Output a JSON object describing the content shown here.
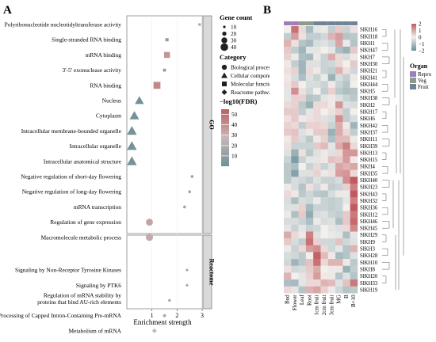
{
  "panel_labels": [
    "A",
    "B"
  ],
  "chart_data": [
    {
      "type": "scatter",
      "panel": "A",
      "xlabel": "Enrichment strength",
      "xlim": [
        0,
        3
      ],
      "xticks": [
        1,
        2,
        3
      ],
      "facets": [
        {
          "name": "GO",
          "terms": [
            {
              "term": "Polyribonucleotide nucleotidyltransferase activity",
              "x": 2.9,
              "category": "Molecular function",
              "size": 10,
              "fdr": 18
            },
            {
              "term": "Single-stranded RNA binding",
              "x": 1.6,
              "category": "Molecular function",
              "size": 14,
              "fdr": 10
            },
            {
              "term": "mRNA binding",
              "x": 1.6,
              "category": "Molecular function",
              "size": 30,
              "fdr": 38
            },
            {
              "term": "3'-5' exonuclease activity",
              "x": 1.5,
              "category": "Molecular function",
              "size": 12,
              "fdr": 8
            },
            {
              "term": "RNA binding",
              "x": 1.2,
              "category": "Molecular function",
              "size": 36,
              "fdr": 42
            },
            {
              "term": "Nucleus",
              "x": 0.5,
              "category": "Cellular component",
              "size": 36,
              "fdr": 2
            },
            {
              "term": "Cytoplasm",
              "x": 0.3,
              "category": "Cellular component",
              "size": 38,
              "fdr": 2
            },
            {
              "term": "Intracellular membrane-bounded organelle",
              "x": 0.2,
              "category": "Cellular component",
              "size": 40,
              "fdr": 2
            },
            {
              "term": "Intracellular organelle",
              "x": 0.2,
              "category": "Cellular component",
              "size": 40,
              "fdr": 2
            },
            {
              "term": "Intracellular anatomical structure",
              "x": 0.2,
              "category": "Cellular component",
              "size": 40,
              "fdr": 2
            },
            {
              "term": "Negative regulation of short-day flowering",
              "x": 2.6,
              "category": "Biological process",
              "size": 12,
              "fdr": 15
            },
            {
              "term": "Negative regulation of long-day flowering",
              "x": 2.5,
              "category": "Biological process",
              "size": 12,
              "fdr": 15
            },
            {
              "term": "mRNA transcription",
              "x": 2.3,
              "category": "Biological process",
              "size": 12,
              "fdr": 14
            },
            {
              "term": "Regulation of gene expression",
              "x": 0.9,
              "category": "Biological process",
              "size": 36,
              "fdr": 34
            },
            {
              "term": "Macromolecule metabolic process",
              "x": 0.9,
              "category": "Biological process",
              "size": 38,
              "fdr": 32
            }
          ]
        },
        {
          "name": "Reactome",
          "terms": [
            {
              "term": "Signaling by Non-Receptor Tyrosine Kinases",
              "x": 2.4,
              "category": "Reactome pathways",
              "size": 10,
              "fdr": 14
            },
            {
              "term": "Signaling by PTK6",
              "x": 2.4,
              "category": "Reactome pathways",
              "size": 10,
              "fdr": 14
            },
            {
              "term": "Regulation of mRNA stability by proteins that bind AU-rich elements",
              "x": 1.7,
              "category": "Reactome pathways",
              "size": 12,
              "fdr": 16
            },
            {
              "term": "Processing of Capped Intron-Containing Pre-mRNA",
              "x": 1.5,
              "category": "Reactome pathways",
              "size": 14,
              "fdr": 18
            },
            {
              "term": "Metabolism of mRNA",
              "x": 1.1,
              "category": "Reactome pathways",
              "size": 18,
              "fdr": 28
            }
          ]
        }
      ],
      "legend": {
        "size_title": "Gene count",
        "size_values": [
          10,
          20,
          30,
          40
        ],
        "category_title": "Category",
        "categories": [
          {
            "name": "Biological process",
            "shape": "circle"
          },
          {
            "name": "Cellular component",
            "shape": "triangle"
          },
          {
            "name": "Molecular function",
            "shape": "square"
          },
          {
            "name": "Reactome pathways",
            "shape": "diamond"
          }
        ],
        "color_title": "−log10(FDR)",
        "color_ticks": [
          10,
          20,
          30,
          40,
          50
        ],
        "color_range": [
          0,
          55
        ],
        "colors": [
          "#6f8f97",
          "#c8b8b8",
          "#b86060"
        ]
      }
    },
    {
      "type": "heatmap",
      "panel": "B",
      "columns": [
        "Bud",
        "Flower",
        "Leaf",
        "Root",
        "1cm fruit",
        "2cm fruit",
        "3cm fruit",
        "MG",
        "B",
        "B+10"
      ],
      "column_organ": [
        "Repro",
        "Repro",
        "Veg",
        "Veg",
        "Fruit",
        "Fruit",
        "Fruit",
        "Fruit",
        "Fruit",
        "Fruit"
      ],
      "rows": [
        "SlKH16",
        "SlKH18",
        "SlKH1",
        "SlKH47",
        "SlKH7",
        "SlKH30",
        "SlKH21",
        "SlKH41",
        "SlKH44",
        "SlKH5",
        "SlKH38",
        "SlKH2",
        "SlKH17",
        "SlKH6",
        "SlKH42",
        "SlKH37",
        "SlKH11",
        "SlKH39",
        "SlKH13",
        "SlKH15",
        "SlKH4",
        "SlKH35",
        "SlKH40",
        "SlKH23",
        "SlKH43",
        "SlKH32",
        "SlKH36",
        "SlKH12",
        "SlKH46",
        "SlKH45",
        "SlKH29",
        "SlKH9",
        "SlKH3",
        "SlKH28",
        "SlKH10",
        "SlKH8",
        "SlKH20",
        "SlKH33",
        "SlKH19"
      ],
      "values": [
        [
          0.0,
          1.7,
          0.3,
          -1.1,
          -0.2,
          -0.1,
          -0.7,
          0.5,
          -0.6,
          0.2
        ],
        [
          -0.7,
          1.1,
          0.2,
          -0.7,
          -0.7,
          -0.5,
          0.8,
          1.1,
          -0.9,
          -0.8
        ],
        [
          0.8,
          0.2,
          -0.9,
          -1.1,
          -0.4,
          -0.3,
          -0.5,
          1.0,
          -0.1,
          -0.9
        ],
        [
          0.5,
          -0.7,
          -1.2,
          -0.2,
          -0.2,
          0.0,
          -0.2,
          -1.0,
          -1.3,
          0.5
        ],
        [
          0.4,
          -0.1,
          -1.0,
          -1.1,
          0.1,
          -0.6,
          0.9,
          0.3,
          -0.4,
          -0.1
        ],
        [
          0.1,
          -0.7,
          -1.2,
          -0.3,
          -0.3,
          -0.6,
          -0.5,
          0.3,
          0.0,
          0.5
        ],
        [
          0.2,
          0.4,
          -1.2,
          0.3,
          0.1,
          -0.6,
          -0.7,
          0.8,
          0.2,
          -0.5
        ],
        [
          0.1,
          -0.4,
          -1.0,
          -0.3,
          -0.6,
          -0.1,
          -1.3,
          -0.4,
          -0.7,
          -0.1
        ],
        [
          0.2,
          0.5,
          0.0,
          -0.4,
          -0.4,
          -0.6,
          0.1,
          -0.6,
          -0.9,
          0.0
        ],
        [
          -0.2,
          1.3,
          0.2,
          -0.5,
          0.0,
          -0.7,
          0.4,
          -0.8,
          -1.0,
          -0.9
        ],
        [
          -0.2,
          0.4,
          0.4,
          -0.9,
          -0.8,
          -0.2,
          0.1,
          -0.3,
          -0.6,
          -0.8
        ],
        [
          0.3,
          0.4,
          -0.8,
          -1.3,
          0.3,
          0.3,
          0.1,
          1.2,
          -0.3,
          -0.4
        ],
        [
          0.5,
          0.5,
          -0.7,
          -0.2,
          0.3,
          0.0,
          0.2,
          0.4,
          -0.7,
          0.0
        ],
        [
          0.2,
          0.5,
          0.1,
          0.2,
          0.3,
          -0.3,
          -0.4,
          1.3,
          -0.7,
          -0.4
        ],
        [
          0.4,
          0.3,
          -0.7,
          0.4,
          0.4,
          0.3,
          -0.6,
          0.9,
          0.1,
          -1.2
        ],
        [
          0.5,
          0.6,
          -0.3,
          -0.1,
          0.5,
          0.5,
          -1.3,
          0.9,
          0.3,
          -0.7
        ],
        [
          0.1,
          0.5,
          -0.4,
          -0.8,
          -0.1,
          0.4,
          -1.0,
          0.7,
          0.7,
          -0.1
        ],
        [
          0.2,
          -0.6,
          -0.6,
          -0.6,
          0.5,
          0.7,
          -0.2,
          0.9,
          1.5,
          0.3
        ],
        [
          -0.3,
          -1.3,
          0.2,
          -0.8,
          -0.3,
          0.1,
          -0.3,
          0.3,
          1.2,
          1.2
        ],
        [
          -0.6,
          -1.7,
          -0.6,
          -0.2,
          -0.2,
          0.1,
          0.6,
          0.5,
          1.1,
          0.1
        ],
        [
          -0.8,
          -1.0,
          0.0,
          -0.6,
          0.3,
          -0.6,
          -0.3,
          1.0,
          0.8,
          1.0
        ],
        [
          -0.8,
          -1.6,
          -0.3,
          -0.3,
          0.4,
          -0.1,
          0.2,
          1.1,
          1.2,
          0.3
        ],
        [
          -0.8,
          -0.4,
          -0.5,
          -0.7,
          -0.3,
          -0.6,
          -0.6,
          -0.4,
          1.3,
          2.1
        ],
        [
          -0.1,
          -0.4,
          -0.9,
          0.2,
          -0.5,
          0.1,
          -0.7,
          -0.6,
          0.4,
          1.5
        ],
        [
          0.3,
          0.1,
          -0.8,
          -0.5,
          -0.8,
          -0.9,
          -0.4,
          -0.1,
          -0.1,
          2.0
        ],
        [
          -0.4,
          -1.0,
          -0.4,
          -0.5,
          -0.1,
          -0.6,
          -0.7,
          -0.6,
          -0.2,
          1.5
        ],
        [
          -0.3,
          -0.3,
          0.4,
          -1.1,
          -0.6,
          -0.6,
          -0.7,
          -0.6,
          0.0,
          2.1
        ],
        [
          -0.1,
          -1.0,
          0.5,
          -1.4,
          -0.4,
          -0.3,
          -0.6,
          -0.7,
          0.5,
          1.6
        ],
        [
          -0.4,
          -0.4,
          -0.6,
          -1.0,
          -0.1,
          -0.4,
          -0.3,
          -1.0,
          0.5,
          1.8
        ],
        [
          -0.2,
          -0.6,
          -0.2,
          -0.6,
          -0.5,
          0.0,
          -0.2,
          -0.3,
          0.3,
          1.4
        ],
        [
          0.9,
          0.3,
          -0.1,
          1.5,
          -0.3,
          0.0,
          -0.1,
          -0.2,
          -1.0,
          -0.2
        ],
        [
          0.5,
          -0.4,
          -0.7,
          1.7,
          0.4,
          -0.5,
          -0.5,
          0.6,
          -0.5,
          -0.3
        ],
        [
          -0.1,
          -0.6,
          0.3,
          1.1,
          1.3,
          0.3,
          -0.5,
          -0.2,
          -0.9,
          0.8
        ],
        [
          -0.4,
          -0.5,
          -0.8,
          0.0,
          1.9,
          0.7,
          0.1,
          -1.1,
          -0.9,
          -0.3
        ],
        [
          -0.5,
          -1.2,
          -0.8,
          0.6,
          1.7,
          0.3,
          0.8,
          0.8,
          0.1,
          -0.8
        ],
        [
          0.2,
          -0.5,
          -0.4,
          0.5,
          0.9,
          0.0,
          0.1,
          0.1,
          -1.3,
          -0.7
        ],
        [
          0.8,
          0.0,
          -0.2,
          0.4,
          1.1,
          0.1,
          -0.1,
          -0.9,
          -0.3,
          -0.9
        ],
        [
          -1.0,
          -1.1,
          -0.2,
          0.3,
          0.3,
          0.8,
          0.7,
          -0.3,
          0.6,
          1.6
        ],
        [
          0.3,
          -0.2,
          -0.9,
          0.8,
          1.0,
          0.4,
          -0.1,
          -0.5,
          -0.9,
          -0.8
        ]
      ],
      "colorbar_ticks": [
        2,
        1,
        0,
        -1,
        -2
      ],
      "colorbar_labels": [
        "2",
        "1",
        "0",
        "−1",
        "−2"
      ],
      "legend_title": "Organ",
      "organs": [
        {
          "name": "Repro",
          "color": "#9b7fb6"
        },
        {
          "name": "Veg",
          "color": "#8c9a8e"
        },
        {
          "name": "Fruit",
          "color": "#6e8496"
        }
      ],
      "colors": {
        "low": "#6a8f99",
        "mid": "#f2efed",
        "high": "#c05a5e"
      }
    }
  ]
}
